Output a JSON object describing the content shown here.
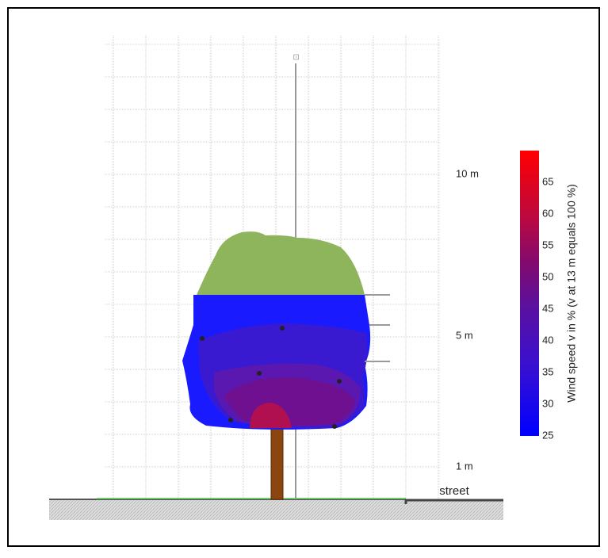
{
  "height_labels": [
    "10 m",
    "5 m",
    "1 m"
  ],
  "street_label": "street",
  "colorbar": {
    "title": "Wind speed v in % (v at 13 m equals 100 %)",
    "ticks": [
      "65",
      "60",
      "55",
      "50",
      "45",
      "40",
      "35",
      "30",
      "25"
    ]
  }
}
